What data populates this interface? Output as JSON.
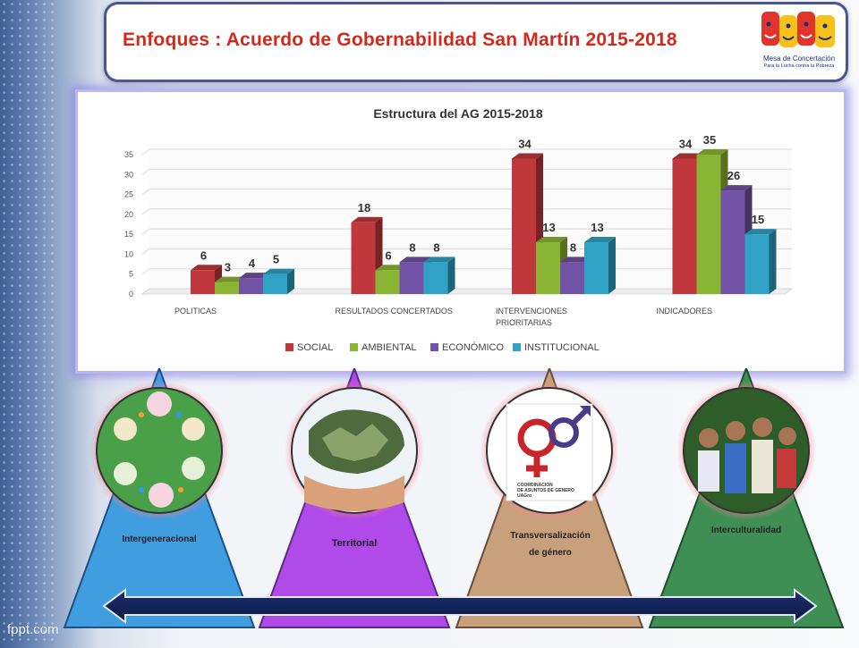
{
  "slide": {
    "title": "Enfoques : Acuerdo de Gobernabilidad San Martín 2015-2018",
    "logo": {
      "line1": "Mesa de Concertación",
      "line2": "Para la Lucha contra la Pobreza"
    },
    "watermark": "fppt.com"
  },
  "chart_data": {
    "type": "bar",
    "title": "Estructura del AG 2015-2018",
    "categories": [
      "POLITICAS",
      "RESULTADOS CONCERTADOS",
      "INTERVENCIONES PRIORITARIAS",
      "INDICADORES"
    ],
    "category_lines": [
      [
        "POLITICAS"
      ],
      [
        "RESULTADOS CONCERTADOS"
      ],
      [
        "INTERVENCIONES",
        "PRIORITARIAS"
      ],
      [
        "INDICADORES"
      ]
    ],
    "series": [
      {
        "name": "SOCIAL",
        "values": [
          6,
          18,
          34,
          34
        ],
        "color": "#c0383c"
      },
      {
        "name": "AMBIENTAL",
        "values": [
          3,
          6,
          13,
          35
        ],
        "color": "#8ab434"
      },
      {
        "name": "ECONÓMICO",
        "values": [
          4,
          8,
          8,
          26
        ],
        "color": "#7152a4"
      },
      {
        "name": "INSTITUCIONAL",
        "values": [
          5,
          8,
          13,
          15
        ],
        "color": "#2fa2c6"
      }
    ],
    "yticks": [
      "0",
      "5",
      "10",
      "15",
      "20",
      "25",
      "30",
      "35"
    ],
    "ylim": [
      0,
      35
    ],
    "grid": true,
    "legend_position": "bottom",
    "bar_style": "3d"
  },
  "enfoques": [
    {
      "label": "Intergeneracional",
      "color": "#3f9de0"
    },
    {
      "label": "Territorial",
      "color": "#b04ae8"
    },
    {
      "label": "Transversalización de género",
      "lines": [
        "Transversalización",
        "de género"
      ],
      "color": "#c9a07c"
    },
    {
      "label": "Interculturalidad",
      "color": "#3f8f55"
    }
  ],
  "gender_logo": {
    "line1": "COORDINACION",
    "line2": "DE ASUNTOS DE GENERO",
    "line3": "UAGro"
  }
}
